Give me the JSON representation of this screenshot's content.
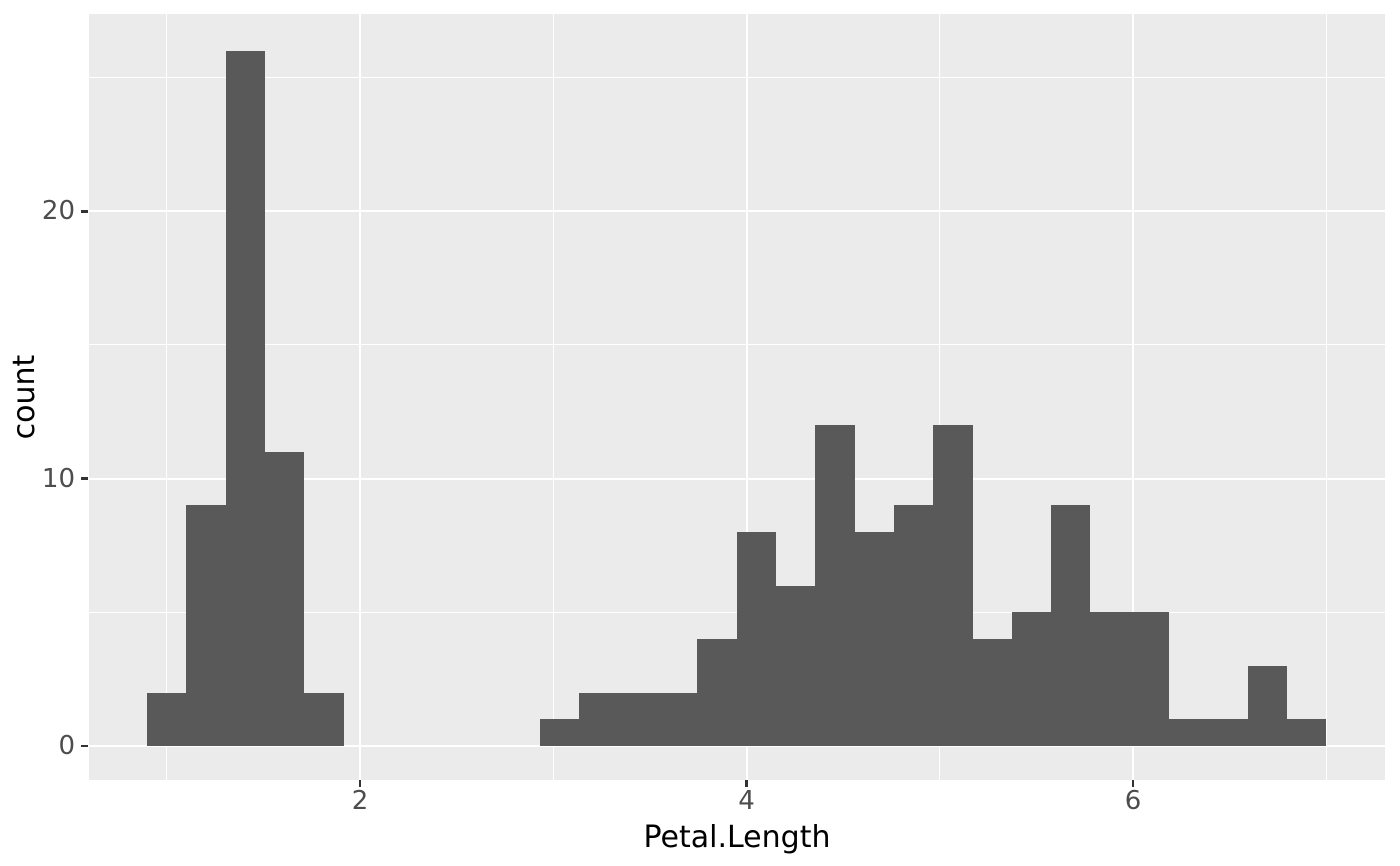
{
  "chart_data": {
    "type": "bar",
    "subtype": "histogram",
    "title": "",
    "xlabel": "Petal.Length",
    "ylabel": "count",
    "bins": {
      "start": 0.8983,
      "width": 0.2034,
      "counts": [
        2,
        9,
        26,
        11,
        2,
        0,
        0,
        0,
        0,
        0,
        1,
        2,
        2,
        2,
        4,
        8,
        6,
        12,
        8,
        9,
        12,
        4,
        5,
        9,
        5,
        5,
        1,
        1,
        3,
        1
      ]
    },
    "x_ticks": [
      {
        "v": 2,
        "label": "2"
      },
      {
        "v": 4,
        "label": "4"
      },
      {
        "v": 6,
        "label": "6"
      }
    ],
    "x_minor_gridlines": [
      1,
      3,
      5,
      7
    ],
    "y_ticks": [
      {
        "v": 0,
        "label": "0"
      },
      {
        "v": 10,
        "label": "10"
      },
      {
        "v": 20,
        "label": "20"
      }
    ],
    "y_minor_gridlines": [
      5,
      15,
      25
    ],
    "x_domain": [
      0.5976,
      7.304
    ],
    "y_domain": [
      -1.272,
      27.381
    ],
    "legend": "none",
    "grid": "on",
    "colors": {
      "figure_bg": "#FFFFFF",
      "panel_bg": "#EBEBEB",
      "gridline": "#FFFFFF",
      "bar_fill": "#595959",
      "tick_label_text": "#4D4D4D",
      "tick_mark": "#333333",
      "axis_title_text": "#000000"
    }
  }
}
